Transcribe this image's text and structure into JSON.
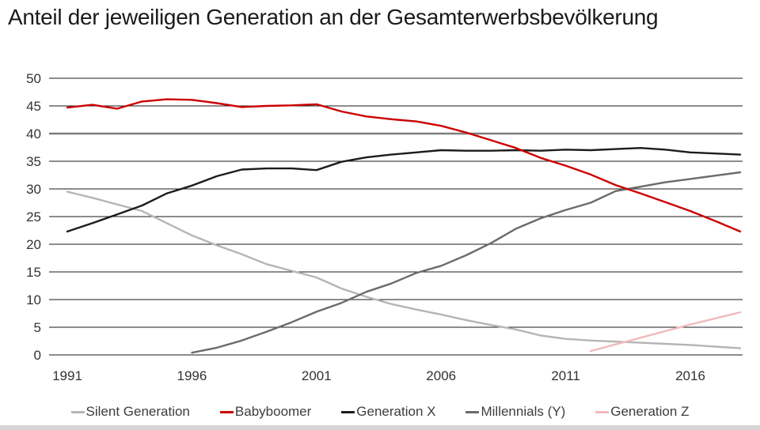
{
  "page_title": "Anteil der jeweiligen Generation an der Gesamterwerbsbevölkerung",
  "colors": {
    "background": "#ffffff",
    "grid": "#1a1a1a",
    "grid_emphasized": "#7d7d7d",
    "axis_text": "#333333",
    "legend_text": "#3d3d3d",
    "footer_bar": "#d5d5d5"
  },
  "chart_data": {
    "type": "line",
    "title": "Anteil der jeweiligen Generation an der Gesamterwerbsbevölkerung",
    "xlabel": "",
    "ylabel": "",
    "x_range": [
      1991,
      2018
    ],
    "y_range": [
      0,
      50
    ],
    "x_ticks": [
      1991,
      1996,
      2001,
      2006,
      2011,
      2016
    ],
    "y_ticks": [
      0,
      5,
      10,
      15,
      20,
      25,
      30,
      35,
      40,
      45,
      50
    ],
    "grid": true,
    "emphasized_gridline": 40,
    "legend_position": "bottom",
    "series": [
      {
        "id": "silent-generation",
        "name": "Silent Generation",
        "color": "#b5b5b5",
        "start_year": 1991,
        "values": [
          29.5,
          28.4,
          27.2,
          26.0,
          23.8,
          21.6,
          19.8,
          18.2,
          16.4,
          15.2,
          14.0,
          12.0,
          10.5,
          9.2,
          8.2,
          7.3,
          6.3,
          5.4,
          4.6,
          3.5,
          2.9,
          2.6,
          2.4,
          2.2,
          2.0,
          1.8,
          1.5,
          1.2
        ]
      },
      {
        "id": "babyboomer",
        "name": "Babyboomer",
        "color": "#cc0000",
        "start_year": 1991,
        "values": [
          44.7,
          45.2,
          44.5,
          45.8,
          46.2,
          46.1,
          45.5,
          44.8,
          45.0,
          45.1,
          45.3,
          44.0,
          43.1,
          42.6,
          42.2,
          41.4,
          40.2,
          38.8,
          37.4,
          35.6,
          34.2,
          32.6,
          30.7,
          29.2,
          27.6,
          26.0,
          24.2,
          22.3
        ]
      },
      {
        "id": "generation-x",
        "name": "Generation X",
        "color": "#1c1c1c",
        "start_year": 1991,
        "values": [
          22.3,
          23.8,
          25.4,
          27.0,
          29.2,
          30.6,
          32.3,
          33.5,
          33.7,
          33.7,
          33.4,
          34.9,
          35.7,
          36.2,
          36.6,
          37.0,
          36.9,
          36.9,
          37.0,
          36.9,
          37.1,
          37.0,
          37.2,
          37.4,
          37.1,
          36.6,
          36.4,
          36.2
        ]
      },
      {
        "id": "millennials-y",
        "name": "Millennials (Y)",
        "color": "#6b6b6b",
        "start_year": 1996,
        "values": [
          0.4,
          1.3,
          2.6,
          4.2,
          5.9,
          7.8,
          9.4,
          11.4,
          12.9,
          14.8,
          16.1,
          18.0,
          20.2,
          22.8,
          24.7,
          26.2,
          27.5,
          29.6,
          30.4,
          31.2,
          31.8,
          32.4,
          33.0
        ]
      },
      {
        "id": "generation-z",
        "name": "Generation Z",
        "color": "#f2b9bc",
        "start_year": 2012,
        "values": [
          0.7,
          1.9,
          3.1,
          4.3,
          5.5,
          6.6,
          7.7
        ]
      }
    ]
  }
}
